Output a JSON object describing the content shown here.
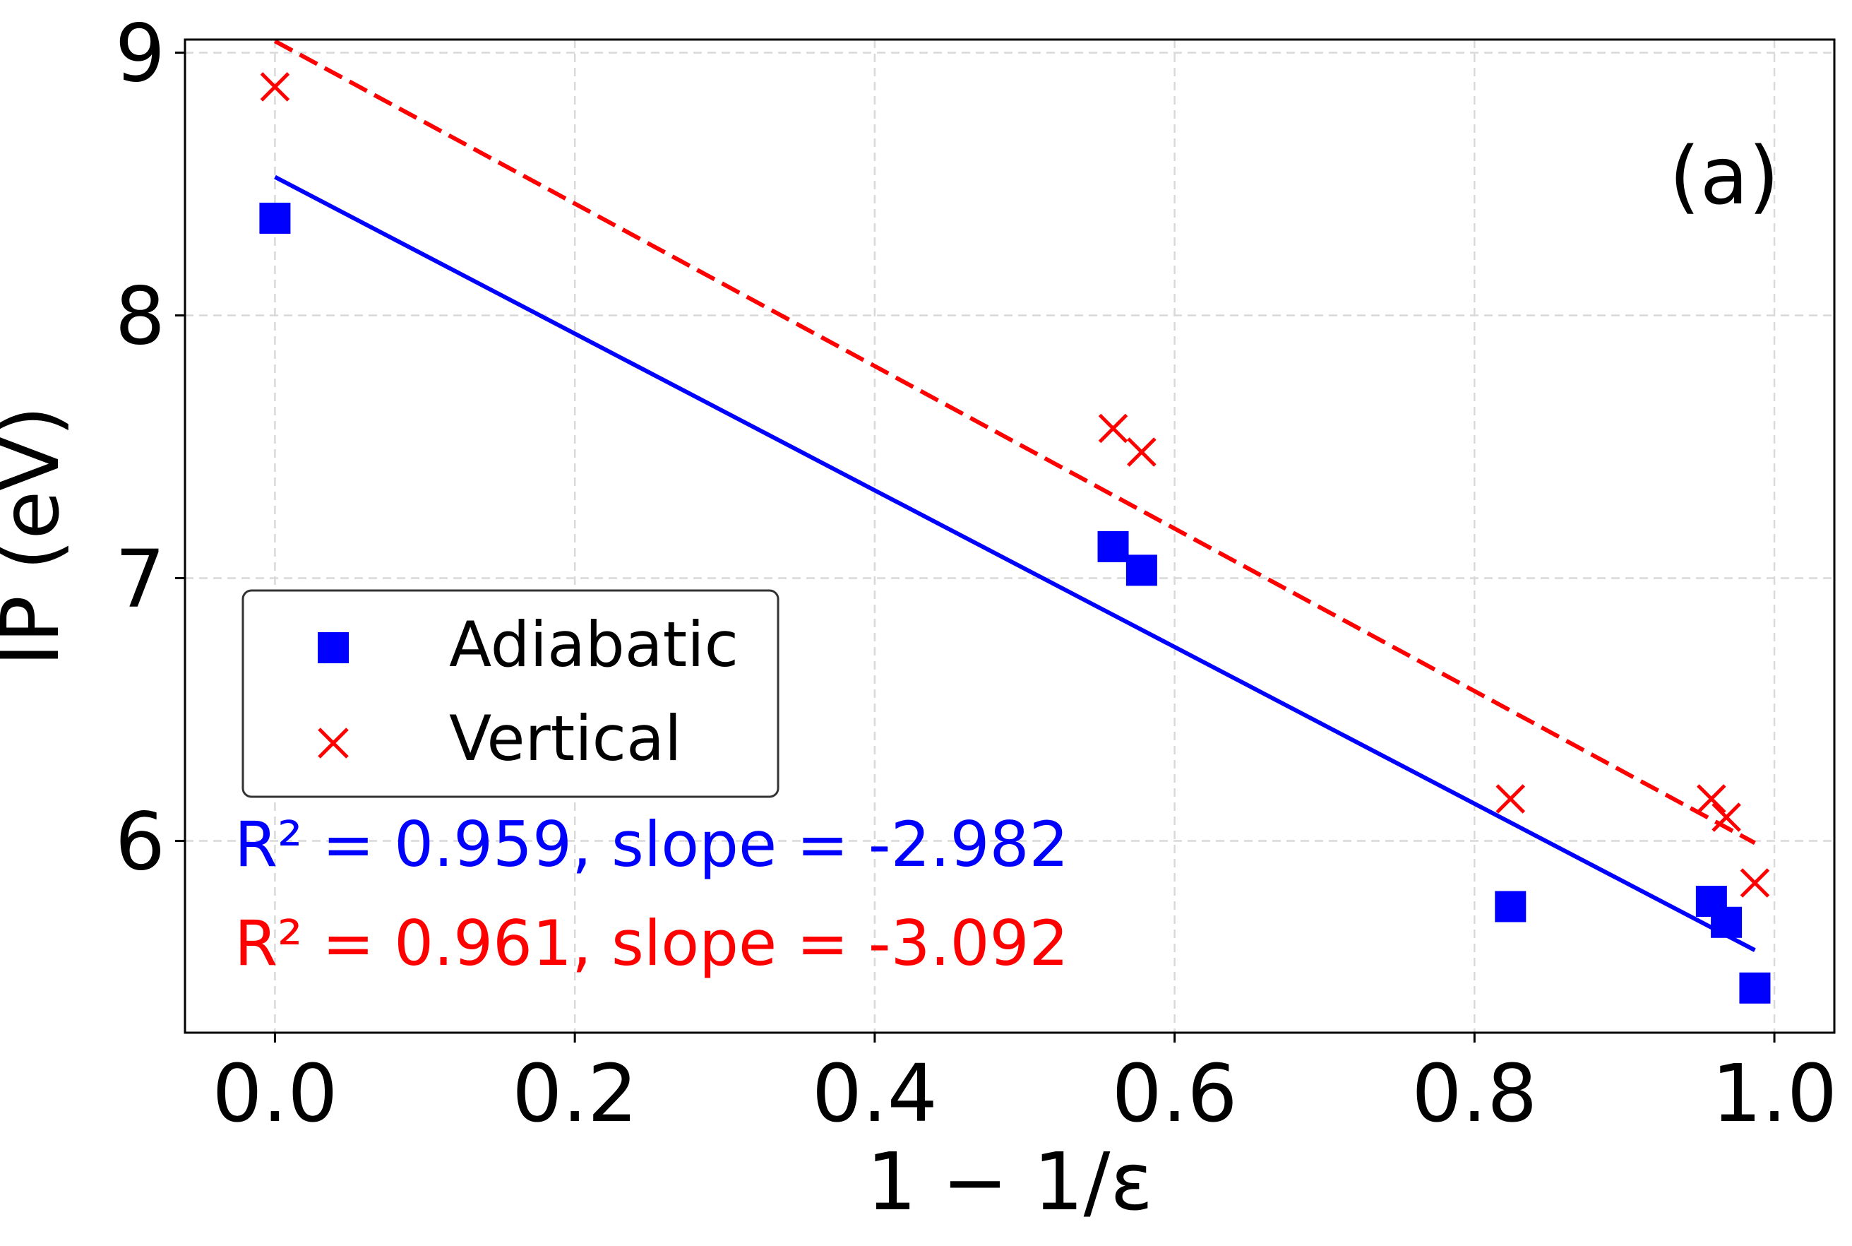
{
  "chart_data": {
    "type": "scatter",
    "title": "",
    "xlabel": "1 − 1/ε",
    "ylabel": "IP (eV)",
    "xlim": [
      -0.06,
      1.04
    ],
    "ylim": [
      5.27,
      9.05
    ],
    "xticks": [
      0.0,
      0.2,
      0.4,
      0.6,
      0.8,
      1.0
    ],
    "xtick_labels": [
      "0.0",
      "0.2",
      "0.4",
      "0.6",
      "0.8",
      "1.0"
    ],
    "yticks": [
      6,
      7,
      8,
      9
    ],
    "ytick_labels": [
      "6",
      "7",
      "8",
      "9"
    ],
    "grid": true,
    "panel_label": "(a)",
    "legend": {
      "position": "center-left",
      "entries": [
        "Adiabatic",
        "Vertical"
      ]
    },
    "series": [
      {
        "name": "Adiabatic",
        "marker": "square",
        "color": "#0000ff",
        "x": [
          0.0,
          0.559,
          0.578,
          0.824,
          0.958,
          0.968,
          0.987
        ],
        "y": [
          8.37,
          7.12,
          7.03,
          5.75,
          5.77,
          5.69,
          5.44
        ]
      },
      {
        "name": "Vertical",
        "marker": "x",
        "color": "#ff0000",
        "x": [
          0.0,
          0.559,
          0.578,
          0.824,
          0.958,
          0.968,
          0.987
        ],
        "y": [
          8.87,
          7.57,
          7.48,
          6.16,
          6.16,
          6.09,
          5.84
        ]
      }
    ],
    "fits": [
      {
        "name": "Adiabatic fit",
        "color": "#0000ff",
        "dash": "solid",
        "x": [
          0.0,
          0.987
        ],
        "y": [
          8.527,
          5.584
        ]
      },
      {
        "name": "Vertical fit",
        "color": "#ff0000",
        "dash": "dashed",
        "x": [
          0.0,
          0.987
        ],
        "y": [
          9.044,
          5.992
        ]
      }
    ],
    "annotations": [
      {
        "text": "R² = 0.959, slope = -2.982",
        "color": "#0000ff"
      },
      {
        "text": "R² = 0.961, slope = -3.092",
        "color": "#ff0000"
      }
    ]
  }
}
